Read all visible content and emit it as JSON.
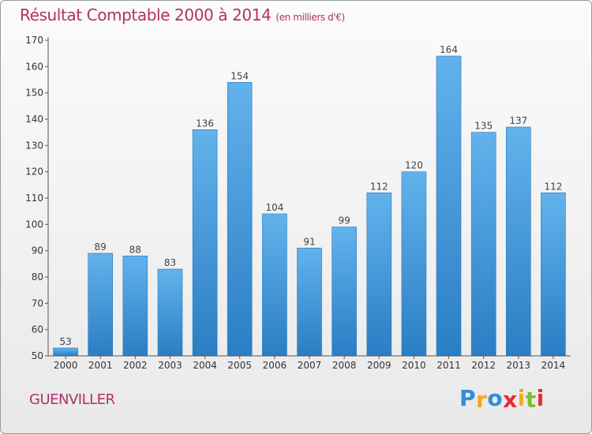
{
  "header": {
    "title": "Résultat Comptable 2000 à 2014",
    "subtitle": "(en milliers d'€)"
  },
  "footer": {
    "town": "GUENVILLER",
    "logo": {
      "letters": [
        "P",
        "r",
        "o",
        "x",
        "i",
        "t",
        "i"
      ],
      "colors": [
        "#2f8fd8",
        "#f2a81d",
        "#2f8fd8",
        "#e8292f",
        "#f2a81d",
        "#7bbf2a",
        "#e8292f"
      ]
    }
  },
  "colors": {
    "bar_top": "#62b2ec",
    "bar_bottom": "#2b7ec4",
    "accent": "#b0306a"
  },
  "chart_data": {
    "type": "bar",
    "categories": [
      "2000",
      "2001",
      "2002",
      "2003",
      "2004",
      "2005",
      "2006",
      "2007",
      "2008",
      "2009",
      "2010",
      "2011",
      "2012",
      "2013",
      "2014"
    ],
    "values": [
      53,
      89,
      88,
      83,
      136,
      154,
      104,
      91,
      99,
      112,
      120,
      164,
      135,
      137,
      112
    ],
    "ylim": [
      50,
      170
    ],
    "yticks": [
      50,
      60,
      70,
      80,
      90,
      100,
      110,
      120,
      130,
      140,
      150,
      160,
      170
    ],
    "grid": false,
    "legend": "none"
  }
}
